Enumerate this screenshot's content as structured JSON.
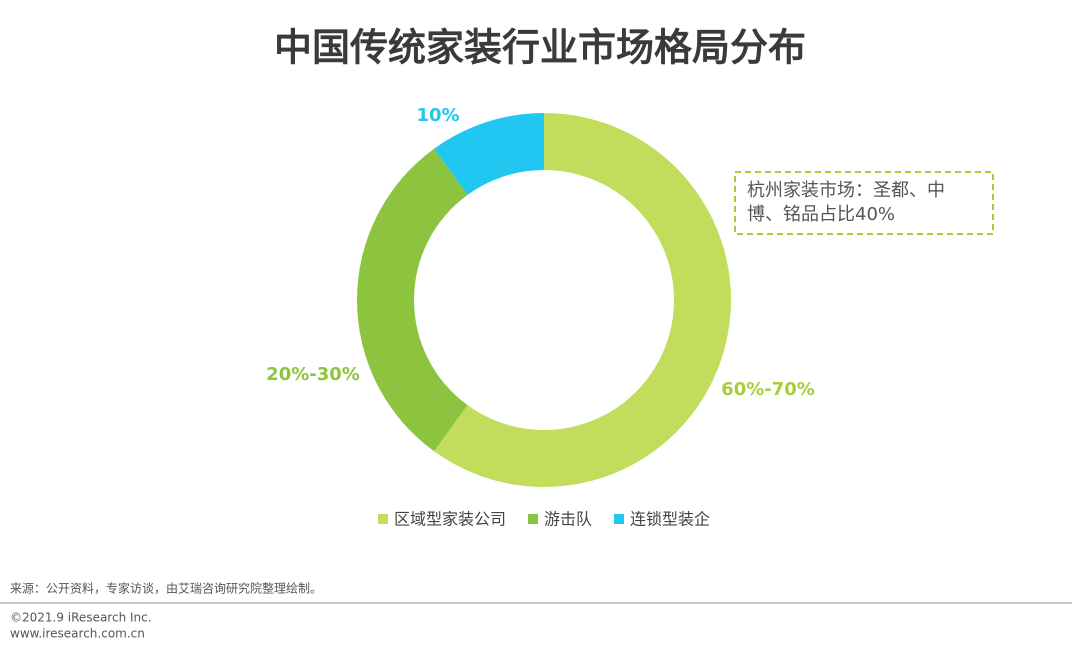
{
  "chart_data": {
    "type": "donut",
    "title": "中国传统家装行业市场格局分布",
    "categories": [
      "区域型家装公司",
      "游击队",
      "连锁型装企"
    ],
    "values": [
      60,
      30,
      10
    ],
    "value_labels": [
      "60%-70%",
      "20%-30%",
      "10%"
    ],
    "colors": [
      "#c2dd5c",
      "#8dc43f",
      "#21c7f0"
    ],
    "annotation": [
      "杭州家装市场：圣都、中",
      "博、铭品占比40%"
    ]
  },
  "footer": {
    "source": "来源：公开资料，专家访谈，由艾瑞咨询研究院整理绘制。",
    "copyright": "©2021.9 iResearch Inc.",
    "website": "www.iresearch.com.cn"
  }
}
